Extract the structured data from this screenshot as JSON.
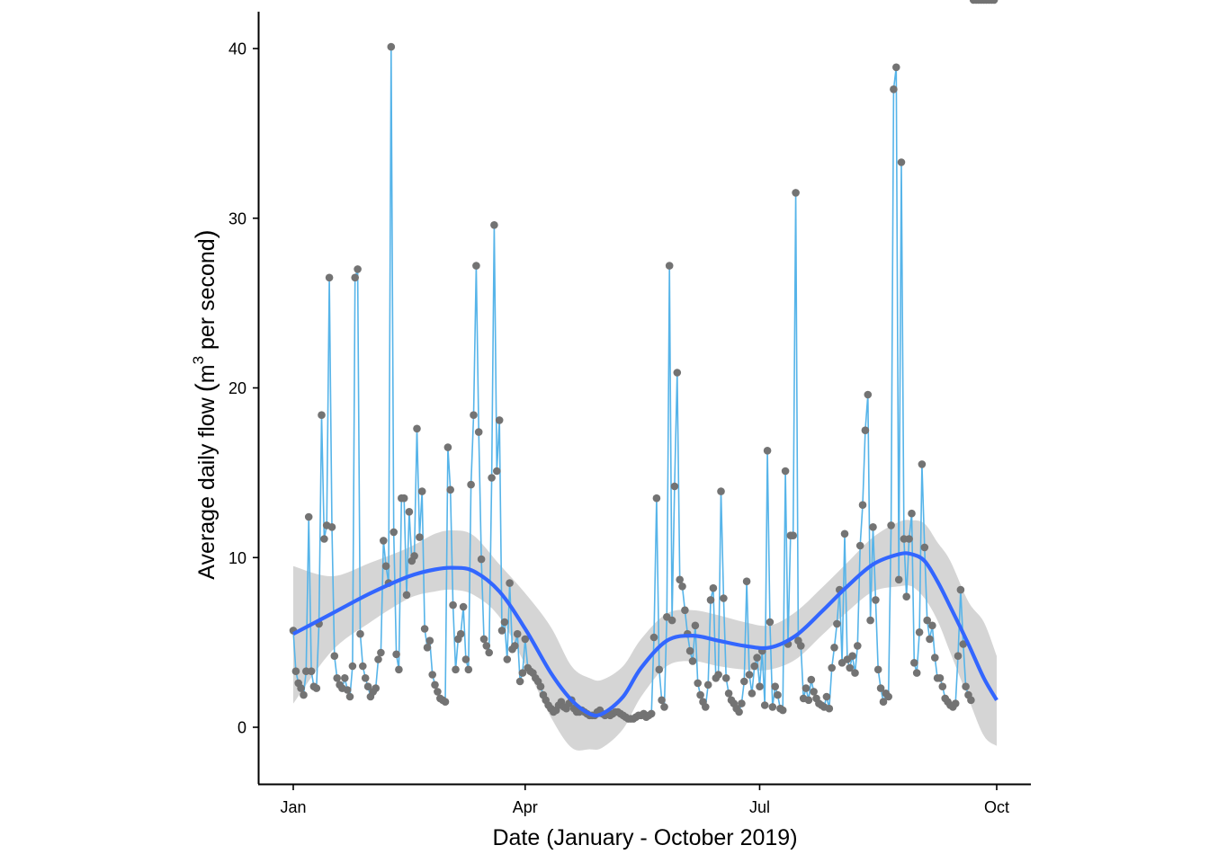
{
  "chart_data": {
    "type": "line",
    "title": "",
    "xlabel": "Date (January - October 2019)",
    "ylabel": {
      "prefix": "Average daily flow",
      "open_paren": "(",
      "unit_base": "m",
      "unit_superscript": "3",
      "unit_rest": " per second",
      "close_paren": ")"
    },
    "x_range_days": [
      -1.5,
      279
    ],
    "ylim": [
      -3.4,
      42.1
    ],
    "x_ticks": [
      {
        "label": "Jan",
        "day": 0
      },
      {
        "label": "Apr",
        "day": 90
      },
      {
        "label": "Jul",
        "day": 181
      },
      {
        "label": "Oct",
        "day": 273
      }
    ],
    "y_ticks": [
      0,
      10,
      20,
      30,
      40
    ],
    "grid": false,
    "legend": "none",
    "colors": {
      "line": "#56B4E9",
      "points": "#737373",
      "smooth": "#3366FF",
      "ribbon": "#D3D3D3",
      "axis": "#000000"
    },
    "series": [
      {
        "name": "Average daily flow",
        "x_days": [
          0,
          1,
          2,
          3,
          4,
          5,
          6,
          7,
          8,
          9,
          10,
          11,
          12,
          13,
          14,
          15,
          16,
          17,
          18,
          19,
          20,
          21,
          22,
          23,
          24,
          25,
          26,
          27,
          28,
          29,
          30,
          31,
          32,
          33,
          34,
          35,
          36,
          37,
          38,
          39,
          40,
          41,
          42,
          43,
          44,
          45,
          46,
          47,
          48,
          49,
          50,
          51,
          52,
          53,
          54,
          55,
          56,
          57,
          58,
          59,
          60,
          61,
          62,
          63,
          64,
          65,
          66,
          67,
          68,
          69,
          70,
          71,
          72,
          73,
          74,
          75,
          76,
          77,
          78,
          79,
          80,
          81,
          82,
          83,
          84,
          85,
          86,
          87,
          88,
          89,
          90,
          91,
          92,
          93,
          94,
          95,
          96,
          97,
          98,
          99,
          100,
          101,
          102,
          103,
          104,
          105,
          106,
          107,
          108,
          109,
          110,
          111,
          112,
          113,
          114,
          115,
          116,
          117,
          118,
          119,
          120,
          121,
          122,
          123,
          124,
          125,
          126,
          127,
          128,
          129,
          130,
          131,
          132,
          133,
          134,
          135,
          136,
          137,
          138,
          139,
          140,
          141,
          142,
          143,
          144,
          145,
          146,
          147,
          148,
          149,
          150,
          151,
          152,
          153,
          154,
          155,
          156,
          157,
          158,
          159,
          160,
          161,
          162,
          163,
          164,
          165,
          166,
          167,
          168,
          169,
          170,
          171,
          172,
          173,
          174,
          175,
          176,
          177,
          178,
          179,
          180,
          181,
          182,
          183,
          184,
          185,
          186,
          187,
          188,
          189,
          190,
          191,
          192,
          193,
          194,
          195,
          196,
          197,
          198,
          199,
          200,
          201,
          202,
          203,
          204,
          205,
          206,
          207,
          208,
          209,
          210,
          211,
          212,
          213,
          214,
          215,
          216,
          217,
          218,
          219,
          220,
          221,
          222,
          223,
          224,
          225,
          226,
          227,
          228,
          229,
          230,
          231,
          232,
          233,
          234,
          235,
          236,
          237,
          238,
          239,
          240,
          241,
          242,
          243,
          244,
          245,
          246,
          247,
          248,
          249,
          250,
          251,
          252,
          253,
          254,
          255,
          256,
          257,
          258,
          259,
          260,
          261,
          262,
          263,
          264,
          265,
          266,
          267,
          268,
          269,
          270,
          271,
          272
        ],
        "values": [
          5.7,
          3.3,
          2.6,
          2.3,
          1.9,
          3.3,
          12.4,
          3.3,
          2.4,
          2.3,
          6.1,
          18.4,
          11.1,
          11.9,
          26.5,
          11.8,
          4.2,
          2.9,
          2.5,
          2.3,
          2.9,
          2.2,
          1.8,
          3.6,
          26.5,
          27.0,
          5.5,
          3.6,
          2.9,
          2.4,
          1.8,
          2.1,
          2.3,
          4.0,
          4.4,
          11.0,
          9.5,
          8.5,
          40.1,
          11.5,
          4.3,
          3.4,
          13.5,
          13.5,
          7.8,
          12.7,
          9.8,
          10.1,
          17.6,
          11.2,
          13.9,
          5.8,
          4.7,
          5.1,
          3.1,
          2.5,
          2.1,
          1.7,
          1.6,
          1.5,
          16.5,
          14.0,
          7.2,
          3.4,
          5.2,
          5.5,
          7.1,
          4.0,
          3.4,
          14.3,
          18.4,
          27.2,
          17.4,
          9.9,
          5.2,
          4.8,
          4.4,
          14.7,
          29.6,
          15.1,
          18.1,
          5.7,
          6.2,
          4.0,
          8.5,
          4.6,
          4.8,
          5.5,
          2.7,
          3.2,
          5.2,
          3.5,
          3.3,
          3.2,
          2.9,
          2.7,
          2.4,
          1.9,
          1.6,
          1.3,
          1.1,
          0.9,
          1.0,
          1.3,
          1.5,
          1.2,
          1.1,
          1.4,
          1.6,
          1.1,
          0.9,
          0.9,
          1.0,
          0.9,
          0.8,
          0.7,
          0.7,
          0.7,
          0.9,
          1.0,
          0.8,
          0.7,
          0.8,
          0.7,
          0.8,
          0.9,
          0.9,
          0.8,
          0.7,
          0.6,
          0.5,
          0.5,
          0.5,
          0.6,
          0.7,
          0.7,
          0.8,
          0.6,
          0.7,
          0.8,
          5.3,
          13.5,
          3.4,
          1.6,
          1.2,
          6.5,
          27.2,
          6.3,
          14.2,
          20.9,
          8.7,
          8.3,
          6.9,
          5.5,
          4.5,
          3.9,
          6.0,
          2.6,
          1.9,
          1.5,
          1.2,
          2.5,
          7.5,
          8.2,
          2.9,
          3.1,
          13.9,
          7.6,
          2.9,
          2.0,
          1.6,
          1.4,
          1.1,
          0.9,
          1.4,
          2.7,
          8.6,
          3.1,
          2.0,
          3.6,
          4.1,
          2.4,
          4.5,
          1.3,
          16.3,
          6.2,
          1.2,
          2.4,
          1.9,
          1.1,
          1.0,
          15.1,
          4.9,
          11.3,
          11.3,
          31.5,
          5.1,
          4.8,
          1.7,
          2.3,
          1.6,
          2.8,
          2.1,
          1.7,
          1.4,
          1.3,
          1.2,
          1.8,
          1.1,
          3.5,
          4.7,
          6.1,
          8.1,
          3.8,
          11.4,
          4.0,
          3.5,
          4.2,
          3.2,
          4.8,
          10.7,
          13.1,
          17.5,
          19.6,
          6.3,
          11.8,
          7.5,
          3.4,
          2.3,
          1.5,
          2.0,
          1.8,
          11.9,
          37.6,
          38.9,
          8.7,
          33.3,
          11.1,
          7.7,
          11.1,
          12.6,
          3.8,
          3.2,
          5.6,
          15.5,
          10.6,
          6.3,
          5.2,
          6.0,
          4.1,
          2.9,
          2.9,
          2.4,
          1.7,
          1.5,
          1.3,
          1.2,
          1.4,
          4.2,
          8.1,
          4.9,
          2.4,
          1.9,
          1.6
        ]
      }
    ],
    "smooth": {
      "method": "loess",
      "x_days": [
        0,
        15,
        30,
        45,
        55,
        62,
        70,
        80,
        90,
        100,
        108,
        115,
        120,
        128,
        135,
        145,
        155,
        165,
        175,
        185,
        195,
        205,
        215,
        225,
        235,
        240,
        245,
        250,
        255,
        262,
        268,
        273
      ],
      "fit": [
        5.5,
        6.7,
        7.9,
        8.9,
        9.3,
        9.4,
        9.2,
        8.0,
        5.8,
        3.2,
        1.6,
        0.8,
        0.8,
        1.8,
        3.5,
        5.1,
        5.4,
        5.1,
        4.8,
        4.7,
        5.4,
        6.8,
        8.3,
        9.6,
        10.2,
        10.2,
        9.8,
        8.6,
        7.1,
        4.9,
        2.9,
        1.6
      ],
      "lower": [
        1.4,
        4.5,
        6.2,
        7.6,
        8.0,
        8.1,
        7.8,
        6.5,
        3.7,
        0.6,
        -1.2,
        -1.3,
        -1.2,
        -0.1,
        1.8,
        3.6,
        3.9,
        3.6,
        3.4,
        3.4,
        4.0,
        5.4,
        6.8,
        8.0,
        8.3,
        8.3,
        7.6,
        6.3,
        4.4,
        1.7,
        -0.5,
        -1.1
      ],
      "upper": [
        9.5,
        8.9,
        9.7,
        10.6,
        11.4,
        11.6,
        11.3,
        9.6,
        7.9,
        5.9,
        3.6,
        2.9,
        2.8,
        3.6,
        5.2,
        6.7,
        6.9,
        6.6,
        6.2,
        6.0,
        6.8,
        8.2,
        9.7,
        11.2,
        12.1,
        12.2,
        12.0,
        10.9,
        9.8,
        7.4,
        6.2,
        4.2
      ]
    }
  }
}
